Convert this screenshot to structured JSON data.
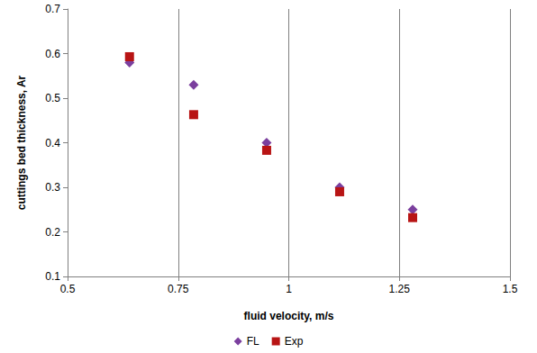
{
  "chart_data": {
    "type": "scatter",
    "x_label": "fluid velocity, m/s",
    "y_label": "cuttings bed thickness, Ar",
    "xlim": [
      0.5,
      1.5
    ],
    "xticks": [
      0.5,
      0.75,
      1,
      1.25,
      1.5
    ],
    "ylim": [
      0.1,
      0.7
    ],
    "yticks": [
      0.1,
      0.2,
      0.3,
      0.4,
      0.5,
      0.6,
      0.7
    ],
    "grid": "x",
    "legend": "bottom",
    "x": [
      0.64,
      0.785,
      0.95,
      1.115,
      1.28
    ],
    "series": [
      {
        "name": "FL",
        "color": "#7b3f9e",
        "marker": "diamond",
        "values": [
          0.58,
          0.53,
          0.4,
          0.3,
          0.25
        ]
      },
      {
        "name": "Exp",
        "color": "#b81414",
        "marker": "square",
        "values": [
          0.593,
          0.463,
          0.383,
          0.29,
          0.232
        ]
      }
    ]
  }
}
